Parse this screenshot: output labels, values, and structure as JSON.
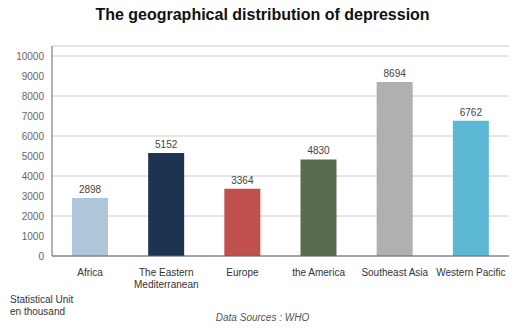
{
  "chart_data": {
    "type": "bar",
    "title": "The geographical distribution of depression",
    "categories": [
      "Africa",
      "The Eastern\nMediterranean",
      "Europe",
      "the America",
      "Southeast Asia",
      "Western Pacific"
    ],
    "values": [
      2898,
      5152,
      3364,
      4830,
      8694,
      6762
    ],
    "colors": [
      "#aec6d8",
      "#1e3351",
      "#c0504d",
      "#5a6b4f",
      "#b0b0b0",
      "#5bb8d4"
    ],
    "ylim": [
      0,
      10500
    ],
    "yticks": [
      0,
      1000,
      2000,
      3000,
      4000,
      5000,
      6000,
      7000,
      8000,
      9000,
      10000
    ],
    "grid": true,
    "data_labels": true,
    "ylabel": "Statistical Unit\nen thousand",
    "caption": "Data Sources : WHO"
  }
}
